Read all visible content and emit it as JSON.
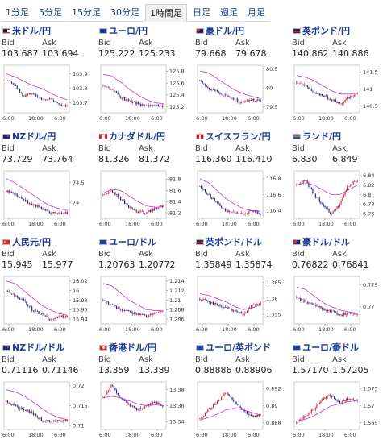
{
  "tabs": [
    {
      "label": "1分足",
      "active": false
    },
    {
      "label": "5分足",
      "active": false
    },
    {
      "label": "15分足",
      "active": false
    },
    {
      "label": "30分足",
      "active": false
    },
    {
      "label": "1時間足",
      "active": true
    },
    {
      "label": "日足",
      "active": false
    },
    {
      "label": "週足",
      "active": false
    },
    {
      "label": "月足",
      "active": false
    }
  ],
  "labels": {
    "bid": "Bid",
    "ask": "Ask"
  },
  "colors": {
    "up": "#dd2222",
    "down": "#1c1f8c",
    "ma": "#cc33cc",
    "link": "#1e3c96"
  },
  "pairs": [
    {
      "name": "米ドル/円",
      "flag": "us-jp-flag-icon",
      "bid": "103.687",
      "ask": "103.694"
    },
    {
      "name": "ユーロ/円",
      "flag": "eu-jp-flag-icon",
      "bid": "125.222",
      "ask": "125.233"
    },
    {
      "name": "豪ドル/円",
      "flag": "au-jp-flag-icon",
      "bid": "79.668",
      "ask": "79.678"
    },
    {
      "name": "英ポンド/円",
      "flag": "gb-jp-flag-icon",
      "bid": "140.862",
      "ask": "140.886"
    },
    {
      "name": "NZドル/円",
      "flag": "nz-jp-flag-icon",
      "bid": "73.729",
      "ask": "73.764"
    },
    {
      "name": "カナダドル/円",
      "flag": "ca-jp-flag-icon",
      "bid": "81.326",
      "ask": "81.372"
    },
    {
      "name": "スイスフラン/円",
      "flag": "ch-jp-flag-icon",
      "bid": "116.360",
      "ask": "116.410"
    },
    {
      "name": "ランド/円",
      "flag": "za-jp-flag-icon",
      "bid": "6.830",
      "ask": "6.849"
    },
    {
      "name": "人民元/円",
      "flag": "cn-jp-flag-icon",
      "bid": "15.945",
      "ask": "15.977"
    },
    {
      "name": "ユーロ/ドル",
      "flag": "eu-us-flag-icon",
      "bid": "1.20763",
      "ask": "1.20772"
    },
    {
      "name": "英ポンド/ドル",
      "flag": "gb-us-flag-icon",
      "bid": "1.35849",
      "ask": "1.35874"
    },
    {
      "name": "豪ドル/ドル",
      "flag": "au-us-flag-icon",
      "bid": "0.76822",
      "ask": "0.76841"
    },
    {
      "name": "NZドル/ドル",
      "flag": "nz-us-flag-icon",
      "bid": "0.71116",
      "ask": "0.71146"
    },
    {
      "name": "香港ドル/円",
      "flag": "hk-jp-flag-icon",
      "bid": "13.359",
      "ask": "13.389"
    },
    {
      "name": "ユーロ/英ポンド",
      "flag": "eu-gb-flag-icon",
      "bid": "0.88886",
      "ask": "0.88906"
    },
    {
      "name": "ユーロ/豪ドル",
      "flag": "eu-au-flag-icon",
      "bid": "1.57170",
      "ask": "1.57205"
    }
  ],
  "chart_data": [
    {
      "type": "candlestick",
      "pair": "米ドル/円",
      "x_ticks": [
        "6:00",
        "18:00",
        "6:00"
      ],
      "y_ticks": [
        "103.9",
        "103.8",
        "103.7"
      ],
      "ylim": [
        103.63,
        103.96
      ],
      "trend": [
        103.85,
        103.82,
        103.74,
        103.77,
        103.72,
        103.73,
        103.69,
        103.68
      ],
      "ma": [
        103.9,
        103.88,
        103.85,
        103.82,
        103.8,
        103.77,
        103.74,
        103.72
      ]
    },
    {
      "type": "candlestick",
      "pair": "ユーロ/円",
      "x_ticks": [
        "6:00",
        "18:00",
        "6:00"
      ],
      "y_ticks": [
        "125.8",
        "125.6",
        "125.4",
        "125.2"
      ],
      "ylim": [
        125.1,
        125.9
      ],
      "trend": [
        125.55,
        125.5,
        125.35,
        125.3,
        125.25,
        125.2,
        125.22,
        125.22
      ],
      "ma": [
        125.75,
        125.72,
        125.62,
        125.5,
        125.4,
        125.32,
        125.27,
        125.25
      ]
    },
    {
      "type": "candlestick",
      "pair": "豪ドル/円",
      "x_ticks": [
        "6:00",
        "18:00",
        "6:00"
      ],
      "y_ticks": [
        "80.5",
        "80",
        "79.5"
      ],
      "ylim": [
        79.35,
        80.6
      ],
      "trend": [
        80.2,
        80.0,
        79.9,
        79.8,
        79.7,
        79.62,
        79.68,
        79.67
      ],
      "ma": [
        80.45,
        80.4,
        80.25,
        80.1,
        79.95,
        79.85,
        79.78,
        79.72
      ]
    },
    {
      "type": "candlestick",
      "pair": "英ポンド/円",
      "x_ticks": [
        "6:00",
        "18:00",
        "6:00"
      ],
      "y_ticks": [
        "141.5",
        "141",
        "140.5"
      ],
      "ylim": [
        140.3,
        141.7
      ],
      "trend": [
        141.2,
        141.1,
        140.9,
        140.8,
        140.7,
        140.55,
        140.75,
        140.86
      ],
      "ma": [
        141.4,
        141.35,
        141.25,
        141.1,
        140.95,
        140.85,
        140.85,
        140.88
      ]
    },
    {
      "type": "candlestick",
      "pair": "NZドル/円",
      "x_ticks": [
        "6:00",
        "18:00",
        "6:00"
      ],
      "y_ticks": [
        "74.5",
        "74"
      ],
      "ylim": [
        73.6,
        74.8
      ],
      "trend": [
        74.3,
        74.2,
        74.05,
        73.95,
        73.85,
        73.75,
        73.72,
        73.73
      ],
      "ma": [
        74.6,
        74.5,
        74.35,
        74.2,
        74.05,
        73.92,
        73.85,
        73.8
      ]
    },
    {
      "type": "candlestick",
      "pair": "カナダドル/円",
      "x_ticks": [
        "6:00",
        "18:00",
        "6:00"
      ],
      "y_ticks": [
        "81.8",
        "81.6",
        "81.4",
        "81.2"
      ],
      "ylim": [
        81.1,
        81.95
      ],
      "trend": [
        81.5,
        81.6,
        81.45,
        81.3,
        81.22,
        81.2,
        81.28,
        81.33
      ],
      "ma": [
        81.55,
        81.62,
        81.6,
        81.5,
        81.4,
        81.32,
        81.3,
        81.31
      ]
    },
    {
      "type": "candlestick",
      "pair": "スイスフラン/円",
      "x_ticks": [
        "6:00",
        "18:00",
        "6:00"
      ],
      "y_ticks": [
        "116.8",
        "116.6",
        "116.4"
      ],
      "ylim": [
        116.3,
        116.9
      ],
      "trend": [
        116.7,
        116.6,
        116.5,
        116.4,
        116.38,
        116.35,
        116.4,
        116.36
      ],
      "ma": [
        116.8,
        116.75,
        116.65,
        116.55,
        116.48,
        116.42,
        116.4,
        116.39
      ]
    },
    {
      "type": "candlestick",
      "pair": "ランド/円",
      "x_ticks": [
        "6:00",
        "18:00",
        "6:00"
      ],
      "y_ticks": [
        "6.84",
        "6.82",
        "6.8",
        "6.78",
        "6.76"
      ],
      "ylim": [
        6.75,
        6.85
      ],
      "trend": [
        6.82,
        6.83,
        6.8,
        6.78,
        6.76,
        6.78,
        6.82,
        6.83
      ],
      "ma": [
        6.82,
        6.825,
        6.82,
        6.81,
        6.8,
        6.8,
        6.81,
        6.82
      ]
    },
    {
      "type": "candlestick",
      "pair": "人民元/円",
      "x_ticks": [
        "6:00",
        "18:00",
        "6:00"
      ],
      "y_ticks": [
        "16.02",
        "16",
        "15.98",
        "15.96",
        "15.94"
      ],
      "ylim": [
        15.93,
        16.03
      ],
      "trend": [
        16.0,
        15.99,
        15.98,
        15.96,
        15.95,
        15.94,
        15.945,
        15.945
      ],
      "ma": [
        16.02,
        16.015,
        16.0,
        15.985,
        15.97,
        15.96,
        15.952,
        15.948
      ]
    },
    {
      "type": "candlestick",
      "pair": "ユーロ/ドル",
      "x_ticks": [
        "6:00",
        "18:00",
        "6:00"
      ],
      "y_ticks": [
        "1.214",
        "1.212",
        "1.21",
        "1.208",
        "1.206"
      ],
      "ylim": [
        1.205,
        1.215
      ],
      "trend": [
        1.21,
        1.209,
        1.208,
        1.2075,
        1.207,
        1.2065,
        1.2075,
        1.2076
      ],
      "ma": [
        1.2135,
        1.213,
        1.2115,
        1.21,
        1.209,
        1.208,
        1.2078,
        1.2077
      ]
    },
    {
      "type": "candlestick",
      "pair": "英ポンド/ドル",
      "x_ticks": [
        "6:00",
        "18:00",
        "6:00"
      ],
      "y_ticks": [
        "1.365",
        "1.36",
        "1.355"
      ],
      "ylim": [
        1.352,
        1.367
      ],
      "trend": [
        1.36,
        1.359,
        1.358,
        1.357,
        1.356,
        1.355,
        1.358,
        1.3585
      ],
      "ma": [
        1.3615,
        1.361,
        1.36,
        1.359,
        1.3575,
        1.3565,
        1.357,
        1.358
      ]
    },
    {
      "type": "candlestick",
      "pair": "豪ドル/ドル",
      "x_ticks": [
        "6:00",
        "18:00",
        "6:00"
      ],
      "y_ticks": [
        "0.775",
        "0.77"
      ],
      "ylim": [
        0.766,
        0.777
      ],
      "trend": [
        0.772,
        0.771,
        0.7705,
        0.7695,
        0.769,
        0.768,
        0.7685,
        0.7682
      ],
      "ma": [
        0.7745,
        0.774,
        0.7725,
        0.771,
        0.77,
        0.7692,
        0.7688,
        0.7685
      ]
    },
    {
      "type": "candlestick",
      "pair": "NZドル/ドル",
      "x_ticks": [
        "6:00",
        "18:00",
        "6:00"
      ],
      "y_ticks": [
        "0.72",
        "0.715",
        "0.71"
      ],
      "ylim": [
        0.709,
        0.721
      ],
      "trend": [
        0.716,
        0.715,
        0.714,
        0.713,
        0.7115,
        0.711,
        0.7112,
        0.7112
      ],
      "ma": [
        0.719,
        0.7185,
        0.7175,
        0.716,
        0.7145,
        0.713,
        0.712,
        0.7115
      ]
    },
    {
      "type": "candlestick",
      "pair": "香港ドル/円",
      "x_ticks": [
        "6:00",
        "18:00",
        "6:00"
      ],
      "y_ticks": [
        "13.38",
        "13.36",
        "13.34"
      ],
      "ylim": [
        13.33,
        13.39
      ],
      "trend": [
        13.37,
        13.385,
        13.37,
        13.36,
        13.355,
        13.36,
        13.365,
        13.359
      ],
      "ma": [
        13.37,
        13.372,
        13.37,
        13.366,
        13.362,
        13.36,
        13.361,
        13.36
      ]
    },
    {
      "type": "candlestick",
      "pair": "ユーロ/英ポンド",
      "x_ticks": [
        "6:00",
        "18:00",
        "6:00"
      ],
      "y_ticks": [
        "0.892",
        "0.89",
        "0.888"
      ],
      "ylim": [
        0.8872,
        0.8928
      ],
      "trend": [
        0.8885,
        0.8895,
        0.8905,
        0.8915,
        0.8905,
        0.8895,
        0.8887,
        0.8889
      ],
      "ma": [
        0.8883,
        0.8886,
        0.889,
        0.8895,
        0.8897,
        0.8895,
        0.8892,
        0.8889
      ]
    },
    {
      "type": "candlestick",
      "pair": "ユーロ/豪ドル",
      "x_ticks": [
        "6:00",
        "18:00",
        "6:00"
      ],
      "y_ticks": [
        "1.575",
        "1.57",
        "1.565"
      ],
      "ylim": [
        1.563,
        1.577
      ],
      "trend": [
        1.565,
        1.567,
        1.569,
        1.572,
        1.573,
        1.571,
        1.572,
        1.5717
      ],
      "ma": [
        1.5655,
        1.566,
        1.567,
        1.5685,
        1.57,
        1.5705,
        1.5712,
        1.5715
      ]
    }
  ]
}
